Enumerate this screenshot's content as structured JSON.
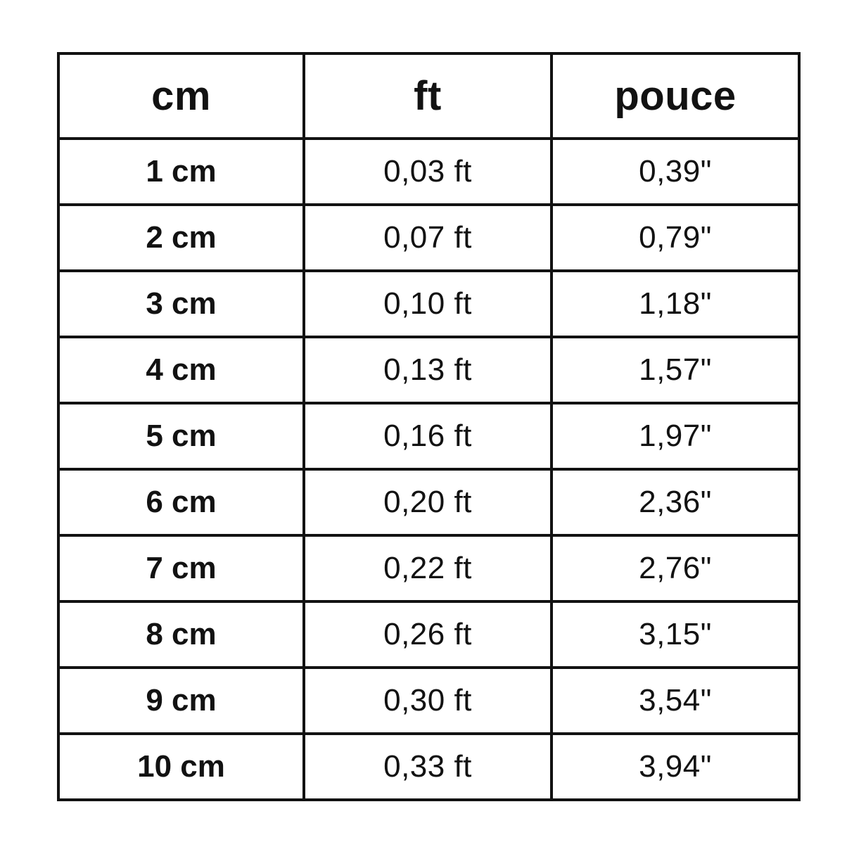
{
  "page": {
    "background_color": "#ffffff",
    "text_color": "#121212",
    "border_color": "#121212"
  },
  "table": {
    "headers": [
      {
        "id": "cm",
        "label": "cm"
      },
      {
        "id": "ft",
        "label": "ft"
      },
      {
        "id": "pouce",
        "label": "pouce"
      }
    ],
    "rows": [
      {
        "cm": "1 cm",
        "ft": "0,03 ft",
        "pouce": "0,39\""
      },
      {
        "cm": "2 cm",
        "ft": "0,07 ft",
        "pouce": "0,79\""
      },
      {
        "cm": "3 cm",
        "ft": "0,10 ft",
        "pouce": "1,18\""
      },
      {
        "cm": "4 cm",
        "ft": "0,13 ft",
        "pouce": "1,57\""
      },
      {
        "cm": "5 cm",
        "ft": "0,16 ft",
        "pouce": "1,97\""
      },
      {
        "cm": "6 cm",
        "ft": "0,20 ft",
        "pouce": "2,36\""
      },
      {
        "cm": "7 cm",
        "ft": "0,22 ft",
        "pouce": "2,76\""
      },
      {
        "cm": "8 cm",
        "ft": "0,26 ft",
        "pouce": "3,15\""
      },
      {
        "cm": "9 cm",
        "ft": "0,30 ft",
        "pouce": "3,54\""
      },
      {
        "cm": "10 cm",
        "ft": "0,33 ft",
        "pouce": "3,94\""
      }
    ]
  },
  "chart_data": {
    "type": "table",
    "columns": [
      "cm",
      "ft",
      "pouce"
    ],
    "rows": [
      [
        "1 cm",
        "0,03 ft",
        "0,39\""
      ],
      [
        "2 cm",
        "0,07 ft",
        "0,79\""
      ],
      [
        "3 cm",
        "0,10 ft",
        "1,18\""
      ],
      [
        "4 cm",
        "0,13 ft",
        "1,57\""
      ],
      [
        "5 cm",
        "0,16 ft",
        "1,97\""
      ],
      [
        "6 cm",
        "0,20 ft",
        "2,36\""
      ],
      [
        "7 cm",
        "0,22 ft",
        "2,76\""
      ],
      [
        "8 cm",
        "0,26 ft",
        "3,15\""
      ],
      [
        "9 cm",
        "0,30 ft",
        "3,54\""
      ],
      [
        "10 cm",
        "0,33 ft",
        "3,94\""
      ]
    ]
  }
}
